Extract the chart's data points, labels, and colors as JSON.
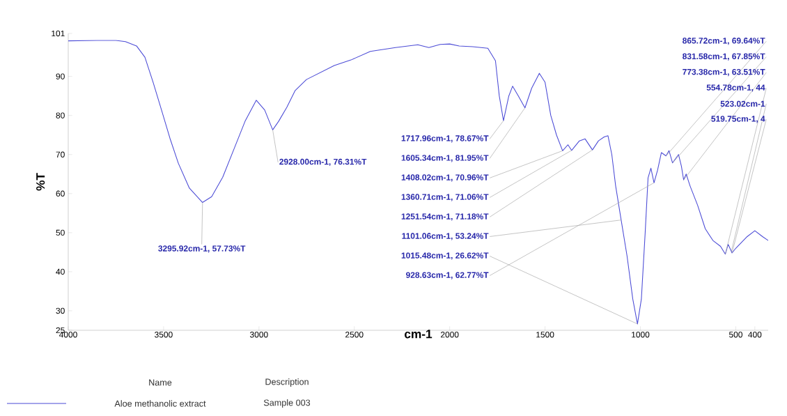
{
  "chart_data": {
    "type": "line",
    "xlabel": "cm-1",
    "ylabel": "%T",
    "xlim": [
      4000,
      330
    ],
    "ylim": [
      25,
      101
    ],
    "xticks": [
      4000,
      3500,
      3000,
      2500,
      2000,
      1500,
      1000,
      500,
      400
    ],
    "yticks": [
      25,
      30,
      40,
      50,
      60,
      70,
      80,
      90,
      101
    ],
    "legend": "bottom",
    "series": [
      {
        "name": "Aloe methanolic extract",
        "color": "#4b4bd6",
        "x": [
          4000,
          3850,
          3750,
          3700,
          3642,
          3598,
          3555,
          3511,
          3467,
          3423,
          3365,
          3295.92,
          3248,
          3190,
          3131,
          3073,
          3014,
          2970,
          2928,
          2897,
          2854,
          2810,
          2751,
          2605,
          2518,
          2416,
          2284,
          2167,
          2109,
          2050,
          2000,
          1950,
          1880,
          1800,
          1760,
          1740,
          1717.96,
          1690,
          1670,
          1640,
          1605.34,
          1570,
          1530,
          1500,
          1470,
          1440,
          1408.02,
          1380,
          1360.71,
          1320,
          1290,
          1251.54,
          1220,
          1190,
          1170,
          1150,
          1130,
          1101.06,
          1070,
          1040,
          1015.48,
          995,
          975,
          960,
          945,
          928.63,
          910,
          890,
          865.72,
          850,
          831.58,
          800,
          785,
          773.38,
          760,
          740,
          700,
          660,
          620,
          580,
          554.78,
          540,
          523.02,
          519.75,
          500,
          470,
          440,
          400,
          360,
          330
        ],
        "values": [
          99.1,
          99.2,
          99.2,
          98.9,
          97.8,
          94.9,
          88.5,
          81.4,
          74.2,
          67.8,
          61.4,
          57.73,
          59.2,
          64.2,
          71.4,
          78.5,
          83.9,
          81.4,
          76.31,
          78.5,
          82.1,
          86.4,
          89.2,
          92.8,
          94.2,
          96.4,
          97.4,
          98.1,
          97.4,
          98.2,
          98.3,
          97.8,
          97.6,
          97.2,
          94,
          85,
          78.67,
          85,
          87.5,
          85,
          81.95,
          87,
          90.8,
          88.5,
          80,
          75,
          70.96,
          72.5,
          71.06,
          73.5,
          74,
          71.18,
          73.5,
          74.5,
          74.8,
          70,
          62,
          53.24,
          44,
          33,
          26.62,
          33,
          50,
          64,
          66.5,
          62.77,
          66,
          70.5,
          69.64,
          71,
          67.85,
          70,
          67,
          63.51,
          65,
          62,
          57,
          51,
          48,
          46.5,
          44.5,
          47,
          45.2,
          44.8,
          46,
          47.5,
          49,
          50.5,
          49,
          48
        ]
      }
    ],
    "annotations": [
      "Name",
      "Description",
      "Sample 003",
      {
        "text": "3295.92cm-1, 57.73%T",
        "x": 3295.92,
        "y": 57.73
      },
      {
        "text": "2928.00cm-1, 76.31%T",
        "x": 2928,
        "y": 76.31
      },
      {
        "text": "1717.96cm-1, 78.67%T",
        "x": 1717.96,
        "y": 78.67
      },
      {
        "text": "1605.34cm-1, 81.95%T",
        "x": 1605.34,
        "y": 81.95
      },
      {
        "text": "1408.02cm-1, 70.96%T",
        "x": 1408.02,
        "y": 70.96
      },
      {
        "text": "1360.71cm-1, 71.06%T",
        "x": 1360.71,
        "y": 71.06
      },
      {
        "text": "1251.54cm-1, 71.18%T",
        "x": 1251.54,
        "y": 71.18
      },
      {
        "text": "1101.06cm-1, 53.24%T",
        "x": 1101.06,
        "y": 53.24
      },
      {
        "text": "1015.48cm-1, 26.62%T",
        "x": 1015.48,
        "y": 26.62
      },
      {
        "text": "928.63cm-1, 62.77%T",
        "x": 928.63,
        "y": 62.77
      },
      {
        "text": "865.72cm-1, 69.64%T",
        "x": 865.72,
        "y": 69.64
      },
      {
        "text": "831.58cm-1, 67.85%T",
        "x": 831.58,
        "y": 67.85
      },
      {
        "text": "773.38cm-1, 63.51%T",
        "x": 773.38,
        "y": 63.51
      },
      {
        "text": "554.78cm-1, 44",
        "x": 554.78,
        "y": 44.5
      },
      {
        "text": "523.02cm-1",
        "x": 523.02,
        "y": 45.2
      },
      {
        "text": "519.75cm-1, 4",
        "x": 519.75,
        "y": 44.8
      }
    ]
  }
}
